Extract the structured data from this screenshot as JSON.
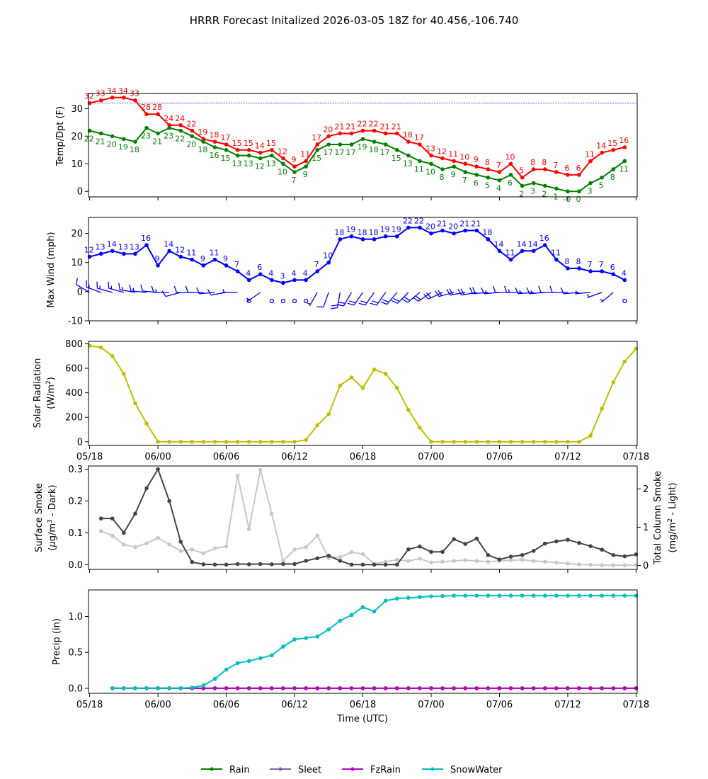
{
  "title": "HRRR Forecast Initalized 2026-03-05 18Z for 40.456,-106.740",
  "chart_data": [
    {
      "type": "line",
      "id": "temp",
      "ylabel": "Temp/Dpt (F)",
      "ylim": [
        -2,
        35.5
      ],
      "yticks": [
        0,
        10,
        20,
        30
      ],
      "freeze_line": 32,
      "series": [
        {
          "name": "Temp",
          "color": "#ff0000",
          "start_hour": 0,
          "values": [
            32,
            33,
            34,
            34,
            33,
            28,
            28,
            24,
            24,
            22,
            19,
            18,
            17,
            15,
            15,
            14,
            15,
            12,
            9,
            11,
            17,
            20,
            21,
            21,
            22,
            22,
            21,
            21,
            18,
            17,
            13,
            12,
            11,
            10,
            9,
            8,
            7,
            10,
            5,
            8,
            8,
            7,
            6,
            6,
            11,
            14,
            15,
            16
          ],
          "labels": [
            "32",
            "33",
            "34",
            "34",
            "33",
            "28",
            "28",
            "24",
            "24",
            "22",
            "19",
            "18",
            "17",
            "15",
            "15",
            "14",
            "15",
            "12",
            "9",
            "11",
            "17",
            "20",
            "21",
            "21",
            "22",
            "22",
            "21",
            "21",
            "18",
            "17",
            "13",
            "12",
            "11",
            "10",
            "9",
            "8",
            "7",
            "10",
            "5",
            "8",
            "8",
            "7",
            "6",
            "6",
            "11",
            "14",
            "15",
            "16"
          ]
        },
        {
          "name": "Dewpoint",
          "color": "#008000",
          "start_hour": 0,
          "values": [
            22,
            21,
            20,
            19,
            18,
            23,
            21,
            23,
            22,
            20,
            18,
            16,
            15,
            13,
            13,
            12,
            13,
            10,
            7,
            9,
            15,
            17,
            17,
            17,
            19,
            18,
            17,
            15,
            13,
            11,
            10,
            8,
            9,
            7,
            6,
            5,
            4,
            6,
            2,
            3,
            2,
            1,
            0,
            0,
            3,
            5,
            8,
            11
          ],
          "labels": [
            "22",
            "21",
            "20",
            "19",
            "18",
            "23",
            "21",
            "23",
            "22",
            "20",
            "18",
            "16",
            "15",
            "13",
            "13",
            "12",
            "13",
            "10",
            "7",
            "9",
            "15",
            "17",
            "17",
            "17",
            "19",
            "18",
            "17",
            "15",
            "13",
            "11",
            "10",
            "8",
            "9",
            "7",
            "6",
            "5",
            "4",
            "6",
            "2",
            "3",
            "2",
            "1",
            "-0",
            "0",
            "3",
            "5",
            "8",
            "11"
          ]
        }
      ]
    },
    {
      "type": "line",
      "id": "wind",
      "ylabel": "Max Wind (mph)",
      "ylim": [
        -10,
        25.5
      ],
      "yticks": [
        -10,
        0,
        10,
        20
      ],
      "series": [
        {
          "name": "Max Wind",
          "color": "#0000ff",
          "start_hour": 0,
          "values": [
            12,
            13,
            14,
            13,
            13,
            16,
            9,
            14,
            12,
            11,
            9,
            11,
            9,
            7,
            4,
            6,
            4,
            3,
            4,
            4,
            7,
            10,
            18,
            19,
            18,
            18,
            19,
            19,
            22,
            22,
            20,
            21,
            20,
            21,
            21,
            18,
            14,
            11,
            14,
            14,
            16,
            11,
            8,
            8,
            7,
            7,
            6,
            4
          ],
          "labels": [
            "12",
            "13",
            "14",
            "13",
            "13",
            "16",
            "9",
            "14",
            "12",
            "11",
            "9",
            "11",
            "9",
            "7",
            "4",
            "6",
            "4",
            "3",
            "4",
            "4",
            "7",
            "10",
            "18",
            "19",
            "18",
            "18",
            "19",
            "19",
            "22",
            "22",
            "20",
            "21",
            "20",
            "21",
            "21",
            "18",
            "14",
            "11",
            "14",
            "14",
            "16",
            "11",
            "8",
            "8",
            "7",
            "7",
            "6",
            "4"
          ]
        }
      ],
      "barb_directions_deg": [
        300,
        290,
        285,
        285,
        280,
        275,
        275,
        270,
        255,
        270,
        270,
        265,
        260,
        270,
        0,
        235,
        0,
        0,
        0,
        180,
        210,
        200,
        190,
        210,
        215,
        215,
        215,
        220,
        225,
        230,
        235,
        245,
        255,
        260,
        260,
        265,
        265,
        270,
        270,
        265,
        265,
        270,
        270,
        265,
        265,
        250,
        230,
        210
      ]
    },
    {
      "type": "line",
      "id": "solar",
      "ylabel_line1": "Solar Radiation",
      "ylabel_line2": "(W/m",
      "ylabel_sup": "2",
      "ylabel_close": ")",
      "ylim": [
        -30,
        820
      ],
      "yticks": [
        0,
        200,
        400,
        600,
        800
      ],
      "series": [
        {
          "name": "Solar Radiation",
          "color": "#bfbf00",
          "start_hour": 0,
          "values": [
            785,
            770,
            700,
            555,
            315,
            150,
            0,
            0,
            0,
            0,
            0,
            0,
            0,
            0,
            0,
            0,
            0,
            0,
            0,
            15,
            135,
            225,
            460,
            525,
            440,
            590,
            555,
            440,
            260,
            115,
            0,
            0,
            0,
            0,
            0,
            0,
            0,
            0,
            0,
            0,
            0,
            0,
            0,
            0,
            50,
            270,
            485,
            655,
            760
          ]
        }
      ]
    },
    {
      "type": "line",
      "id": "smoke",
      "ylabel_line1": "Surface Smoke",
      "ylabel_line2_pre": "(",
      "ylabel_mu": "μ",
      "ylabel_line2": "g/m",
      "ylabel_sup": "3",
      "ylabel_close": " - Dark)",
      "ylabel_right_line1": "Total Column Smoke",
      "ylabel_right_line2": "(mg/m",
      "ylabel_right_sup": "2",
      "ylabel_right_close": " - Light)",
      "ylim": [
        -0.015,
        0.31
      ],
      "yticks": [
        0.0,
        0.1,
        0.2,
        0.3
      ],
      "ylim_right": [
        -0.1,
        2.6
      ],
      "yticks_right": [
        0,
        1,
        2
      ],
      "series": [
        {
          "name": "Surface Smoke",
          "color": "#444444",
          "axis": "left",
          "start_hour": 1,
          "values": [
            0.145,
            0.145,
            0.1,
            0.16,
            0.24,
            0.3,
            0.2,
            0.072,
            0.008,
            0.001,
            0,
            0,
            0.002,
            0.001,
            0.002,
            0.001,
            0.002,
            0.002,
            0.012,
            0.02,
            0.028,
            0.012,
            0,
            0,
            0,
            0,
            0,
            0.048,
            0.057,
            0.04,
            0.04,
            0.08,
            0.065,
            0.082,
            0.03,
            0.016,
            0.025,
            0.03,
            0.043,
            0.066,
            0.073,
            0.078,
            0.068,
            0.058,
            0.047,
            0.03,
            0.026,
            0.032
          ]
        },
        {
          "name": "Total Column Smoke",
          "color": "#c8c8c8",
          "axis": "right",
          "start_hour": 1,
          "values": [
            0.9,
            0.78,
            0.55,
            0.48,
            0.58,
            0.72,
            0.55,
            0.38,
            0.42,
            0.32,
            0.45,
            0.5,
            2.35,
            0.95,
            2.5,
            1.35,
            0.12,
            0.42,
            0.48,
            0.78,
            0.2,
            0.22,
            0.35,
            0.3,
            0.04,
            0.1,
            0.15,
            0.12,
            0.18,
            0.08,
            0.1,
            0.12,
            0.14,
            0.12,
            0.1,
            0.12,
            0.14,
            0.15,
            0.12,
            0.1,
            0.08,
            0.05,
            0.03,
            0.02,
            0.01,
            0.01,
            0.01,
            0.01
          ]
        }
      ]
    },
    {
      "type": "line",
      "id": "precip",
      "ylabel": "Precip (in)",
      "xlabel": "Time (UTC)",
      "ylim": [
        -0.07,
        1.37
      ],
      "yticks": [
        0.0,
        0.5,
        1.0
      ],
      "series": [
        {
          "name": "Rain",
          "color": "#008000",
          "start_hour": 2,
          "values": [
            0,
            0,
            0,
            0,
            0,
            0,
            0,
            0,
            0,
            0,
            0,
            0,
            0,
            0,
            0,
            0,
            0,
            0,
            0,
            0,
            0,
            0,
            0,
            0,
            0,
            0,
            0,
            0,
            0,
            0,
            0,
            0,
            0,
            0,
            0,
            0,
            0,
            0,
            0,
            0,
            0,
            0,
            0,
            0,
            0,
            0,
            0
          ]
        },
        {
          "name": "Sleet",
          "color": "#8064a2",
          "start_hour": 2,
          "values": [
            0,
            0,
            0,
            0,
            0,
            0,
            0,
            0,
            0,
            0,
            0,
            0,
            0,
            0,
            0,
            0,
            0,
            0,
            0,
            0,
            0,
            0,
            0,
            0,
            0,
            0,
            0,
            0,
            0,
            0,
            0,
            0,
            0,
            0,
            0,
            0,
            0,
            0,
            0,
            0,
            0,
            0,
            0,
            0,
            0,
            0,
            0
          ]
        },
        {
          "name": "FzRain",
          "color": "#bf00bf",
          "start_hour": 2,
          "values": [
            0,
            0,
            0,
            0,
            0,
            0,
            0,
            0,
            0,
            0,
            0,
            0,
            0,
            0,
            0,
            0,
            0,
            0,
            0,
            0,
            0,
            0,
            0,
            0,
            0,
            0,
            0,
            0,
            0,
            0,
            0,
            0,
            0,
            0,
            0,
            0,
            0,
            0,
            0,
            0,
            0,
            0,
            0,
            0,
            0,
            0,
            0
          ]
        },
        {
          "name": "SnowWater",
          "color": "#00bfbf",
          "start_hour": 2,
          "values": [
            0,
            0,
            0,
            0,
            0,
            0,
            0,
            0.01,
            0.04,
            0.13,
            0.26,
            0.35,
            0.38,
            0.42,
            0.46,
            0.58,
            0.68,
            0.7,
            0.72,
            0.82,
            0.94,
            1.02,
            1.13,
            1.07,
            1.22,
            1.25,
            1.26,
            1.27,
            1.28,
            1.285,
            1.29,
            1.29,
            1.29,
            1.29,
            1.29,
            1.29,
            1.29,
            1.29,
            1.29,
            1.29,
            1.29,
            1.29,
            1.29,
            1.29,
            1.29,
            1.29,
            1.29
          ]
        }
      ]
    }
  ],
  "x_axis": {
    "hour_range": [
      -0.1,
      48.1
    ],
    "ticks": [
      {
        "hour": 0,
        "label": "05/18"
      },
      {
        "hour": 6,
        "label": "06/00"
      },
      {
        "hour": 12,
        "label": "06/06"
      },
      {
        "hour": 18,
        "label": "06/12"
      },
      {
        "hour": 24,
        "label": "06/18"
      },
      {
        "hour": 30,
        "label": "07/00"
      },
      {
        "hour": 36,
        "label": "07/06"
      },
      {
        "hour": 42,
        "label": "07/12"
      },
      {
        "hour": 48,
        "label": "07/18"
      }
    ]
  },
  "legend": {
    "placement": "bottom-center",
    "entries": [
      {
        "label": "Rain",
        "color": "#008000"
      },
      {
        "label": "Sleet",
        "color": "#8064a2"
      },
      {
        "label": "FzRain",
        "color": "#bf00bf"
      },
      {
        "label": "SnowWater",
        "color": "#00bfbf"
      }
    ]
  }
}
